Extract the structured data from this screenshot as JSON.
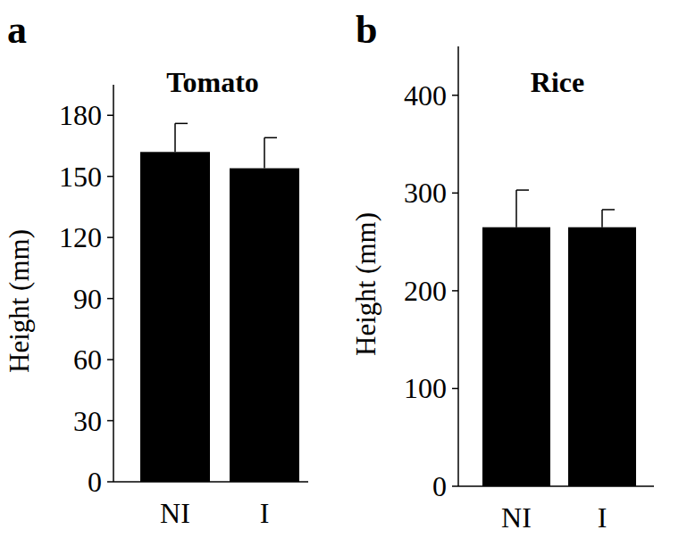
{
  "chart_data": [
    {
      "type": "bar",
      "panel": "a",
      "title": "Tomato",
      "y_label": "Height (mm)",
      "categories": [
        "NI",
        "I"
      ],
      "values": [
        162,
        154
      ],
      "errors": [
        14,
        15
      ],
      "color": "#000000",
      "ylim": [
        0,
        195
      ],
      "yticks": [
        0,
        30,
        60,
        90,
        120,
        150,
        180
      ],
      "grid": false
    },
    {
      "type": "bar",
      "panel": "b",
      "title": "Rice",
      "y_label": "Height (mm)",
      "categories": [
        "NI",
        "I"
      ],
      "values": [
        265,
        265
      ],
      "errors": [
        38,
        18
      ],
      "color": "#000000",
      "ylim": [
        0,
        450
      ],
      "yticks": [
        0,
        100,
        200,
        300,
        400
      ],
      "grid": false
    }
  ]
}
